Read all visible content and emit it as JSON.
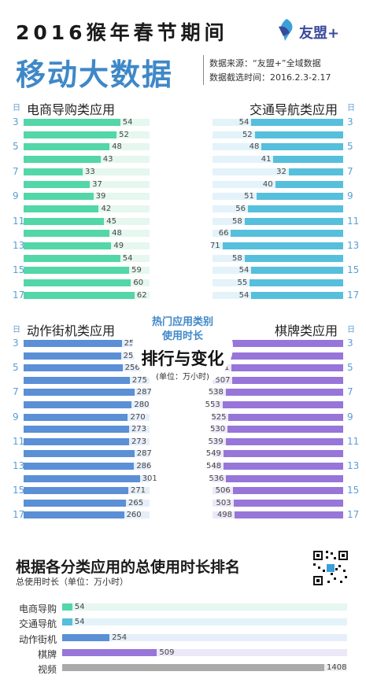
{
  "header": {
    "title_line1": "2016猴年春节期间",
    "title_line2": "移动大数据",
    "logo_text": "友盟+",
    "source_line1": "数据来源：“友盟+”全域数据",
    "source_line2": "数据截选时间：2016.2.3-2.17"
  },
  "day_unit": "日",
  "center": {
    "line1": "热门应用类别",
    "line2": "使用时长",
    "line3": "排行与变化",
    "line4": "(单位：万小时)"
  },
  "colors": {
    "ecommerce": "#53d6a8",
    "ecommerce_bg": "#e5f7ef",
    "navigation": "#56bfdc",
    "navigation_bg": "#e3f3f9",
    "action": "#5b8fd6",
    "action_bg": "#e5eef9",
    "chess": "#9775d9",
    "chess_bg": "#ede8f8",
    "video": "#aaaaaa",
    "video_bg": "#eeeeee"
  },
  "chart_data": [
    {
      "type": "bar",
      "title": "电商导购类应用",
      "categories": [
        "3",
        "4",
        "5",
        "6",
        "7",
        "8",
        "9",
        "10",
        "11",
        "12",
        "13",
        "14",
        "15",
        "16",
        "17"
      ],
      "day_labels": [
        "3",
        "5",
        "7",
        "9",
        "11",
        "13",
        "15",
        "17"
      ],
      "values": [
        54,
        52,
        48,
        43,
        33,
        37,
        39,
        42,
        45,
        48,
        49,
        54,
        59,
        60,
        62
      ],
      "xlim": [
        0,
        66
      ]
    },
    {
      "type": "bar",
      "title": "交通导航类应用",
      "categories": [
        "3",
        "4",
        "5",
        "6",
        "7",
        "8",
        "9",
        "10",
        "11",
        "12",
        "13",
        "14",
        "15",
        "16",
        "17"
      ],
      "day_labels": [
        "3",
        "5",
        "7",
        "9",
        "11",
        "13",
        "15",
        "17"
      ],
      "values": [
        54,
        52,
        48,
        41,
        32,
        40,
        51,
        56,
        58,
        66,
        71,
        58,
        54,
        55,
        54
      ],
      "xlim": [
        0,
        75
      ]
    },
    {
      "type": "bar",
      "title": "动作街机类应用",
      "categories": [
        "3",
        "4",
        "5",
        "6",
        "7",
        "8",
        "9",
        "10",
        "11",
        "12",
        "13",
        "14",
        "15",
        "16",
        "17"
      ],
      "day_labels": [
        "3",
        "5",
        "7",
        "9",
        "11",
        "13",
        "15",
        "17"
      ],
      "values": [
        254,
        252,
        256,
        275,
        287,
        280,
        270,
        273,
        273,
        287,
        286,
        301,
        271,
        265,
        260
      ],
      "xlim": [
        0,
        320
      ]
    },
    {
      "type": "bar",
      "title": "棋牌类应用",
      "categories": [
        "3",
        "4",
        "5",
        "6",
        "7",
        "8",
        "9",
        "10",
        "11",
        "12",
        "13",
        "14",
        "15",
        "16",
        "17"
      ],
      "day_labels": [
        "3",
        "5",
        "7",
        "9",
        "11",
        "13",
        "15",
        "17"
      ],
      "values": [
        509,
        515,
        511,
        507,
        538,
        553,
        525,
        530,
        539,
        549,
        548,
        536,
        506,
        503,
        498
      ],
      "xlim": [
        0,
        570
      ]
    },
    {
      "type": "bar",
      "title": "根据各分类应用的总使用时长排名",
      "subtitle": "总使用时长（单位：万小时）",
      "categories": [
        "电商导购",
        "交通导航",
        "动作街机",
        "棋牌",
        "视频"
      ],
      "values": [
        54,
        54,
        254,
        509,
        1408
      ],
      "xlim": [
        0,
        1408
      ]
    }
  ]
}
